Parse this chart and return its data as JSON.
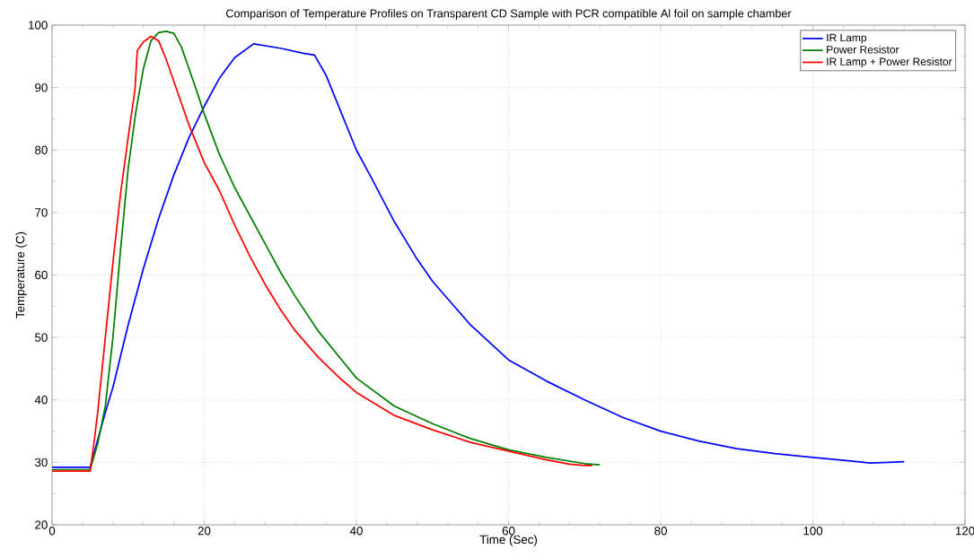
{
  "chart_data": {
    "type": "line",
    "title": "Comparison of Temperature Profiles on Transparent CD Sample with PCR compatible Al foil on sample chamber",
    "xlabel": "Time (Sec)",
    "ylabel": "Temperature (C)",
    "xlim": [
      0,
      120
    ],
    "ylim": [
      20,
      100
    ],
    "xticks": [
      0,
      20,
      40,
      60,
      80,
      100,
      120
    ],
    "yticks": [
      20,
      30,
      40,
      50,
      60,
      70,
      80,
      90,
      100
    ],
    "grid": true,
    "legend": "top right",
    "marker": "none",
    "line_style": "solid",
    "series": [
      {
        "name": "IR Lamp",
        "color": "#0000ff",
        "x": [
          0,
          5,
          7,
          8,
          10,
          12,
          14,
          16,
          18,
          20,
          22,
          24,
          26.5,
          30,
          33,
          34.5,
          36,
          38,
          40,
          42,
          45,
          48,
          50,
          55,
          60,
          65,
          70,
          75,
          80,
          85,
          90,
          95,
          100,
          105,
          107.5,
          110,
          112
        ],
        "values": [
          29.2,
          29.2,
          38,
          42,
          52,
          61,
          69,
          76,
          82,
          87,
          91.5,
          94.8,
          97,
          96.3,
          95.5,
          95.2,
          92,
          86,
          80,
          75.5,
          68.5,
          62.5,
          59,
          52,
          46.4,
          43,
          40,
          37.2,
          35,
          33.4,
          32.2,
          31.4,
          30.8,
          30.2,
          29.9,
          30.0,
          30.1
        ]
      },
      {
        "name": "Power Resistor",
        "color": "#008000",
        "x": [
          0,
          5,
          6,
          7,
          8,
          9,
          10,
          11,
          12,
          13,
          14,
          15,
          16,
          17,
          18,
          19,
          20,
          22,
          24,
          26,
          28,
          30,
          32,
          35,
          38,
          40,
          45,
          50,
          55,
          60,
          65,
          70,
          72
        ],
        "values": [
          28.8,
          28.8,
          33,
          39,
          50,
          64,
          77,
          86,
          93,
          97.5,
          98.8,
          99,
          98.7,
          96.5,
          93,
          89.5,
          85.8,
          79.3,
          74,
          69.5,
          65,
          60.5,
          56.5,
          51,
          46.5,
          43.5,
          39,
          36.2,
          33.8,
          32,
          30.8,
          29.8,
          29.6
        ]
      },
      {
        "name": "IR Lamp + Power Resistor",
        "color": "#ff0000",
        "x": [
          0,
          5,
          5.5,
          6,
          7,
          8,
          9,
          10,
          10.9,
          11.2,
          12,
          13,
          14,
          15,
          16,
          17,
          18,
          20,
          22,
          24,
          26,
          28,
          30,
          32,
          35,
          38,
          40,
          45,
          50,
          55,
          60,
          65,
          68,
          70,
          71
        ],
        "values": [
          28.6,
          28.6,
          33,
          38,
          50,
          62,
          73,
          82,
          89.7,
          95.9,
          97.3,
          98.2,
          97.5,
          94.5,
          91,
          87.5,
          84,
          78,
          73.5,
          68,
          63,
          58.5,
          54.5,
          51,
          46.8,
          43.3,
          41.2,
          37.5,
          35.2,
          33.2,
          31.8,
          30.4,
          29.7,
          29.5,
          29.5
        ]
      }
    ]
  }
}
